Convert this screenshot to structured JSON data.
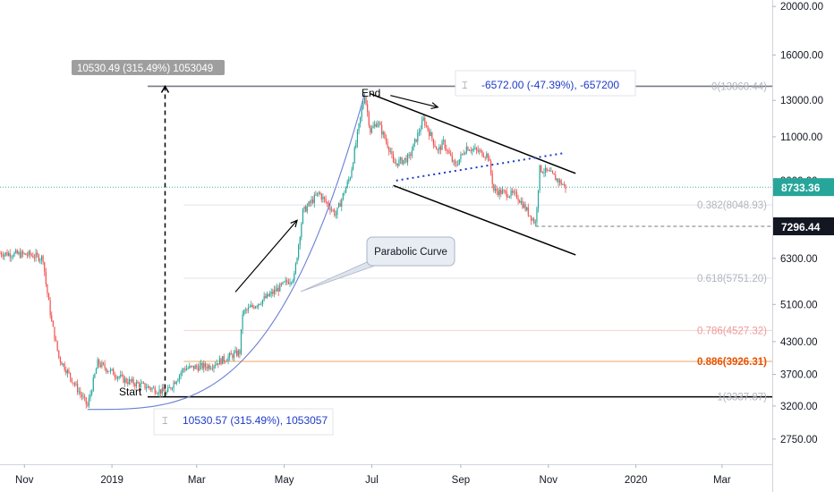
{
  "chart_data": {
    "type": "candlestick",
    "title": "",
    "y_axis": {
      "scale": "log",
      "range": [
        2450,
        20600
      ],
      "tick_labels": [
        "20000.00",
        "16000.00",
        "13000.00",
        "11000.00",
        "9000.00",
        "6300.00",
        "5100.00",
        "4300.00",
        "3700.00",
        "3200.00",
        "2750.00"
      ],
      "tick_values": [
        20000,
        16000,
        13000,
        11000,
        9000,
        6300,
        5100,
        4300,
        3700,
        3200,
        2750
      ]
    },
    "x_axis": {
      "range": [
        "2018-10-15",
        "2020-04-05"
      ],
      "tick_labels": [
        "Nov",
        "2019",
        "Mar",
        "May",
        "Jul",
        "Sep",
        "Nov",
        "2020",
        "Mar"
      ],
      "tick_dates": [
        "2018-11-01",
        "2019-01-01",
        "2019-03-01",
        "2019-05-01",
        "2019-07-01",
        "2019-09-01",
        "2019-11-01",
        "2020-01-01",
        "2020-03-01"
      ]
    },
    "price_anchors": [
      [
        "2018-10-15",
        6450
      ],
      [
        "2018-11-05",
        6400
      ],
      [
        "2018-11-14",
        6300
      ],
      [
        "2018-11-16",
        5600
      ],
      [
        "2018-11-20",
        4700
      ],
      [
        "2018-11-25",
        4000
      ],
      [
        "2018-12-15",
        3200
      ],
      [
        "2018-12-22",
        3900
      ],
      [
        "2019-01-10",
        3600
      ],
      [
        "2019-02-08",
        3400
      ],
      [
        "2019-02-20",
        3800
      ],
      [
        "2019-03-10",
        3850
      ],
      [
        "2019-03-31",
        4100
      ],
      [
        "2019-04-02",
        4900
      ],
      [
        "2019-04-20",
        5300
      ],
      [
        "2019-05-08",
        5800
      ],
      [
        "2019-05-14",
        7800
      ],
      [
        "2019-05-25",
        8500
      ],
      [
        "2019-06-06",
        7700
      ],
      [
        "2019-06-16",
        9200
      ],
      [
        "2019-06-26",
        13400
      ],
      [
        "2019-06-30",
        11300
      ],
      [
        "2019-07-05",
        11800
      ],
      [
        "2019-07-14",
        10300
      ],
      [
        "2019-07-16",
        9700
      ],
      [
        "2019-07-27",
        10000
      ],
      [
        "2019-08-06",
        11900
      ],
      [
        "2019-08-16",
        10300
      ],
      [
        "2019-08-20",
        10700
      ],
      [
        "2019-08-28",
        9600
      ],
      [
        "2019-09-05",
        10500
      ],
      [
        "2019-09-20",
        10100
      ],
      [
        "2019-09-24",
        8600
      ],
      [
        "2019-10-10",
        8400
      ],
      [
        "2019-10-23",
        7400
      ],
      [
        "2019-10-26",
        9500
      ],
      [
        "2019-11-02",
        9300
      ],
      [
        "2019-11-10",
        8900
      ],
      [
        "2019-11-13",
        8733
      ]
    ],
    "price_levels": {
      "current": {
        "value": 8733.36,
        "label": "8733.36",
        "color": "#26a69a"
      },
      "marker": {
        "value": 7296.44,
        "label": "7296.44",
        "color": "#131722"
      }
    },
    "fibonacci": [
      {
        "value": 13868.44,
        "label": "0(13868.44)",
        "color": "#b2b5be",
        "line": "#787b86"
      },
      {
        "value": 8048.93,
        "label": "0.382(8048.93)",
        "color": "#b2b5be",
        "line": "#e0e3eb"
      },
      {
        "value": 5751.2,
        "label": "0.618(5751.20)",
        "color": "#b2b5be",
        "line": "#e0e3eb"
      },
      {
        "value": 4527.32,
        "label": "0.786(4527.32)",
        "color": "#ef9a9a",
        "line": "#f3d3d3"
      },
      {
        "value": 3926.31,
        "label": "0.886(3926.31)",
        "color": "#e65100",
        "line": "#f5a663"
      },
      {
        "value": 3337.87,
        "label": "1(3337.87)",
        "color": "#b2b5be",
        "line": "#000000"
      }
    ],
    "annotations": {
      "measure_top": "10530.49 (315.49%) 1053049",
      "measure_bottom": "10530.57 (315.49%), 1053057",
      "measure_channel": "-6572.00 (-47.39%), -657200",
      "start_label": "Start",
      "end_label": "End",
      "callout": "Parabolic Curve"
    },
    "colors": {
      "up": "#26a69a",
      "down": "#ef5350",
      "blue": "#1e3bc8",
      "curve": "#6a7fd6"
    },
    "grid": false
  }
}
